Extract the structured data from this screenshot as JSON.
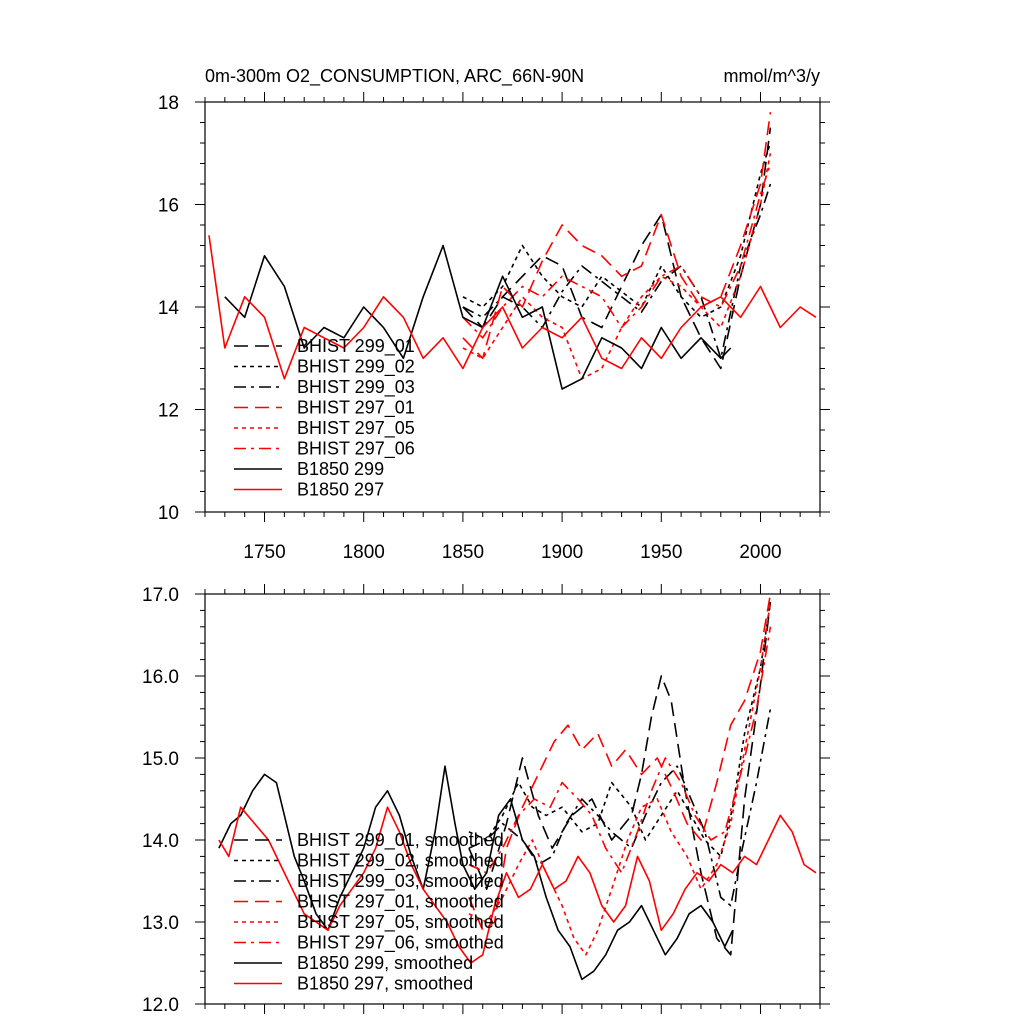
{
  "chart_data": [
    {
      "type": "line",
      "title": "0m-300m O2_CONSUMPTION, ARC_66N-90N",
      "units": "mmol/m^3/y",
      "xlim": [
        1720,
        2030
      ],
      "ylim": [
        10,
        18
      ],
      "xticks": [
        1750,
        1800,
        1850,
        1900,
        1950,
        2000
      ],
      "yticks": [
        10,
        12,
        14,
        16,
        18
      ],
      "grid": false,
      "legend_position": "bottom-left",
      "series": [
        {
          "name": "BHIST 299_01",
          "color": "#000000",
          "dash": "long-dash",
          "x": [
            1850,
            1860,
            1870,
            1880,
            1890,
            1900,
            1910,
            1920,
            1930,
            1940,
            1950,
            1960,
            1970,
            1980,
            1990,
            2000,
            2005
          ],
          "y": [
            14.0,
            13.6,
            14.2,
            14.6,
            15.0,
            14.8,
            13.8,
            13.6,
            14.4,
            15.2,
            15.8,
            14.2,
            13.4,
            12.8,
            14.6,
            16.0,
            17.5
          ]
        },
        {
          "name": "BHIST 299_02",
          "color": "#000000",
          "dash": "short-dash",
          "x": [
            1850,
            1860,
            1870,
            1880,
            1890,
            1900,
            1910,
            1920,
            1930,
            1940,
            1950,
            1960,
            1970,
            1980,
            1990,
            2000,
            2005
          ],
          "y": [
            14.2,
            14.0,
            14.4,
            15.2,
            14.6,
            14.2,
            14.0,
            14.6,
            14.3,
            14.0,
            14.8,
            14.2,
            13.8,
            14.0,
            15.0,
            16.6,
            17.2
          ]
        },
        {
          "name": "BHIST 299_03",
          "color": "#000000",
          "dash": "dash-dot",
          "x": [
            1850,
            1860,
            1870,
            1880,
            1890,
            1900,
            1910,
            1920,
            1930,
            1940,
            1950,
            1960,
            1970,
            1980,
            1990,
            2000,
            2005
          ],
          "y": [
            14.0,
            13.8,
            14.2,
            14.0,
            13.6,
            14.3,
            14.8,
            14.5,
            14.2,
            13.9,
            14.5,
            14.8,
            14.2,
            13.0,
            14.8,
            15.8,
            16.4
          ]
        },
        {
          "name": "BHIST 297_01",
          "color": "#ff0000",
          "dash": "long-dash",
          "x": [
            1850,
            1860,
            1870,
            1880,
            1890,
            1900,
            1910,
            1920,
            1930,
            1940,
            1950,
            1960,
            1970,
            1980,
            1990,
            2000,
            2005
          ],
          "y": [
            13.4,
            13.0,
            14.4,
            14.0,
            14.9,
            15.6,
            15.2,
            15.0,
            14.6,
            14.8,
            15.8,
            14.6,
            14.0,
            14.2,
            15.2,
            16.4,
            17.8
          ]
        },
        {
          "name": "BHIST 297_05",
          "color": "#ff0000",
          "dash": "short-dash",
          "x": [
            1850,
            1860,
            1870,
            1880,
            1890,
            1900,
            1910,
            1920,
            1930,
            1940,
            1950,
            1960,
            1970,
            1980,
            1990,
            2000,
            2005
          ],
          "y": [
            13.2,
            13.0,
            13.6,
            14.2,
            13.8,
            13.6,
            12.6,
            12.8,
            13.6,
            14.2,
            14.6,
            14.4,
            14.0,
            13.6,
            14.6,
            16.0,
            17.0
          ]
        },
        {
          "name": "BHIST 297_06",
          "color": "#ff0000",
          "dash": "dash-dot",
          "x": [
            1850,
            1860,
            1870,
            1880,
            1890,
            1900,
            1910,
            1920,
            1930,
            1940,
            1950,
            1960,
            1970,
            1980,
            1990,
            2000,
            2005
          ],
          "y": [
            13.8,
            13.4,
            14.0,
            14.4,
            14.2,
            14.6,
            14.4,
            14.2,
            13.6,
            14.0,
            14.6,
            14.8,
            14.2,
            14.0,
            14.8,
            16.2,
            16.8
          ]
        },
        {
          "name": "B1850 299",
          "color": "#000000",
          "dash": "solid",
          "x": [
            1730,
            1740,
            1750,
            1760,
            1770,
            1780,
            1790,
            1800,
            1810,
            1820,
            1830,
            1840,
            1850,
            1860,
            1870,
            1880,
            1890,
            1900,
            1910,
            1920,
            1930,
            1940,
            1950,
            1960,
            1970,
            1980,
            1985
          ],
          "y": [
            14.2,
            13.8,
            15.0,
            14.4,
            13.2,
            13.6,
            13.4,
            14.0,
            13.6,
            13.0,
            14.2,
            15.2,
            13.8,
            13.6,
            14.6,
            13.8,
            14.0,
            12.4,
            12.6,
            13.4,
            13.2,
            12.8,
            13.6,
            13.0,
            13.4,
            13.0,
            13.2
          ]
        },
        {
          "name": "B1850 297",
          "color": "#ff0000",
          "dash": "solid",
          "x": [
            1722,
            1730,
            1740,
            1750,
            1760,
            1770,
            1780,
            1790,
            1800,
            1810,
            1820,
            1830,
            1840,
            1850,
            1860,
            1870,
            1880,
            1890,
            1900,
            1910,
            1920,
            1930,
            1940,
            1950,
            1960,
            1970,
            1980,
            1990,
            2000,
            2010,
            2020,
            2028
          ],
          "y": [
            15.4,
            13.2,
            14.2,
            13.8,
            12.6,
            13.6,
            13.4,
            13.2,
            13.6,
            14.2,
            13.8,
            13.0,
            13.4,
            12.8,
            13.6,
            14.0,
            13.2,
            13.6,
            13.4,
            13.8,
            13.0,
            12.8,
            13.4,
            13.0,
            13.6,
            14.0,
            14.2,
            13.8,
            14.4,
            13.6,
            14.0,
            13.8
          ]
        }
      ]
    },
    {
      "type": "line",
      "xlim": [
        1720,
        2030
      ],
      "ylim": [
        12,
        17
      ],
      "xticks": [
        1750,
        1800,
        1850,
        1900,
        1950,
        2000
      ],
      "yticks": [
        "12.0",
        "13.0",
        "14.0",
        "15.0",
        "16.0",
        "17.0"
      ],
      "grid": false,
      "legend_position": "bottom-left",
      "series": [
        {
          "name": "BHIST 299_01, smoothed",
          "color": "#000000",
          "dash": "long-dash",
          "x": [
            1853,
            1862,
            1872,
            1880,
            1888,
            1895,
            1905,
            1915,
            1925,
            1935,
            1940,
            1945,
            1950,
            1955,
            1962,
            1970,
            1978,
            1985,
            1992,
            2000,
            2005
          ],
          "y": [
            13.9,
            13.4,
            14.2,
            15.0,
            14.3,
            13.9,
            14.3,
            14.5,
            14.0,
            14.3,
            14.8,
            15.5,
            16.0,
            15.7,
            14.6,
            13.6,
            12.8,
            12.6,
            14.5,
            15.9,
            16.9
          ]
        },
        {
          "name": "BHIST 299_02, smoothed",
          "color": "#000000",
          "dash": "short-dash",
          "x": [
            1853,
            1862,
            1870,
            1878,
            1885,
            1892,
            1900,
            1910,
            1918,
            1925,
            1935,
            1942,
            1950,
            1958,
            1965,
            1972,
            1980,
            1986,
            1992,
            2000,
            2005
          ],
          "y": [
            14.1,
            14.0,
            14.3,
            14.7,
            14.4,
            14.3,
            14.4,
            14.1,
            14.2,
            14.7,
            14.4,
            14.0,
            14.3,
            14.6,
            14.3,
            14.0,
            13.8,
            14.4,
            15.3,
            16.1,
            16.9
          ]
        },
        {
          "name": "BHIST 299_03, smoothed",
          "color": "#000000",
          "dash": "dash-dot",
          "x": [
            1853,
            1862,
            1870,
            1880,
            1888,
            1895,
            1902,
            1910,
            1918,
            1925,
            1935,
            1942,
            1950,
            1958,
            1965,
            1972,
            1980,
            1985,
            1990,
            1998,
            2005
          ],
          "y": [
            13.9,
            14.0,
            14.2,
            14.0,
            13.7,
            13.8,
            14.2,
            14.5,
            14.3,
            14.1,
            13.9,
            14.3,
            14.7,
            14.9,
            14.5,
            14.1,
            13.3,
            13.2,
            13.8,
            14.7,
            15.6
          ]
        },
        {
          "name": "BHIST 297_01, smoothed",
          "color": "#ff0000",
          "dash": "long-dash",
          "x": [
            1853,
            1860,
            1866,
            1872,
            1880,
            1888,
            1896,
            1903,
            1910,
            1918,
            1925,
            1932,
            1940,
            1948,
            1956,
            1963,
            1970,
            1978,
            1985,
            1992,
            2000,
            2005
          ],
          "y": [
            13.3,
            12.9,
            13.0,
            13.9,
            14.4,
            14.8,
            15.2,
            15.4,
            15.1,
            15.3,
            14.9,
            15.1,
            14.8,
            15.0,
            14.6,
            14.2,
            14.0,
            14.7,
            15.4,
            15.7,
            16.3,
            17.0
          ]
        },
        {
          "name": "BHIST 297_05, smoothed",
          "color": "#ff0000",
          "dash": "short-dash",
          "x": [
            1853,
            1862,
            1870,
            1878,
            1885,
            1892,
            1900,
            1906,
            1912,
            1918,
            1925,
            1933,
            1940,
            1948,
            1955,
            1963,
            1970,
            1978,
            1985,
            1992,
            2000,
            2005
          ],
          "y": [
            13.1,
            13.0,
            13.3,
            13.7,
            14.0,
            13.6,
            13.2,
            12.8,
            12.6,
            12.9,
            13.4,
            14.0,
            14.4,
            14.5,
            14.1,
            13.8,
            13.4,
            13.7,
            14.2,
            15.1,
            16.1,
            16.9
          ]
        },
        {
          "name": "BHIST 297_06, smoothed",
          "color": "#ff0000",
          "dash": "dash-dot",
          "x": [
            1853,
            1862,
            1870,
            1878,
            1886,
            1894,
            1900,
            1908,
            1915,
            1922,
            1930,
            1938,
            1945,
            1952,
            1960,
            1967,
            1975,
            1982,
            1990,
            1998,
            2005
          ],
          "y": [
            13.7,
            13.6,
            13.9,
            14.3,
            14.5,
            14.4,
            14.7,
            14.5,
            14.3,
            13.9,
            13.6,
            14.1,
            14.6,
            15.0,
            14.7,
            14.3,
            14.0,
            14.1,
            14.8,
            15.6,
            16.6
          ]
        },
        {
          "name": "B1850 299, smoothed",
          "color": "#000000",
          "dash": "solid",
          "x": [
            1727,
            1733,
            1738,
            1744,
            1750,
            1756,
            1760,
            1765,
            1770,
            1776,
            1782,
            1788,
            1794,
            1800,
            1806,
            1812,
            1818,
            1824,
            1830,
            1836,
            1841,
            1846,
            1850,
            1856,
            1862,
            1868,
            1874,
            1880,
            1886,
            1892,
            1898,
            1904,
            1910,
            1916,
            1922,
            1928,
            1934,
            1940,
            1946,
            1952,
            1958,
            1964,
            1970,
            1976,
            1982,
            1986
          ],
          "y": [
            13.9,
            14.2,
            14.3,
            14.6,
            14.8,
            14.7,
            14.3,
            13.8,
            13.5,
            13.1,
            12.9,
            13.3,
            13.6,
            13.9,
            14.4,
            14.6,
            14.3,
            13.8,
            13.4,
            14.1,
            14.9,
            14.2,
            13.7,
            13.4,
            13.6,
            14.3,
            14.5,
            14.0,
            13.8,
            13.3,
            12.9,
            12.7,
            12.3,
            12.4,
            12.6,
            12.9,
            13.0,
            13.2,
            12.9,
            12.6,
            12.8,
            13.1,
            13.2,
            13.0,
            12.7,
            12.9
          ]
        },
        {
          "name": "B1850 297, smoothed",
          "color": "#ff0000",
          "dash": "solid",
          "x": [
            1727,
            1732,
            1738,
            1745,
            1752,
            1758,
            1764,
            1770,
            1776,
            1782,
            1788,
            1794,
            1800,
            1806,
            1812,
            1818,
            1824,
            1830,
            1836,
            1842,
            1848,
            1854,
            1860,
            1866,
            1872,
            1878,
            1884,
            1890,
            1896,
            1902,
            1908,
            1914,
            1920,
            1926,
            1932,
            1938,
            1944,
            1950,
            1956,
            1962,
            1968,
            1974,
            1980,
            1986,
            1992,
            1998,
            2004,
            2010,
            2016,
            2022,
            2028
          ],
          "y": [
            14.0,
            13.8,
            14.4,
            14.2,
            14.0,
            13.7,
            13.4,
            13.1,
            13.0,
            12.9,
            13.2,
            13.4,
            13.6,
            13.9,
            14.4,
            14.1,
            13.7,
            13.4,
            13.2,
            13.0,
            12.7,
            12.5,
            12.6,
            13.2,
            13.6,
            13.3,
            13.4,
            13.7,
            13.4,
            13.5,
            13.8,
            13.6,
            13.2,
            13.0,
            13.2,
            13.8,
            13.5,
            12.9,
            13.1,
            13.4,
            13.6,
            13.5,
            13.7,
            13.6,
            13.8,
            13.7,
            14.0,
            14.3,
            14.1,
            13.7,
            13.6
          ]
        }
      ]
    }
  ]
}
